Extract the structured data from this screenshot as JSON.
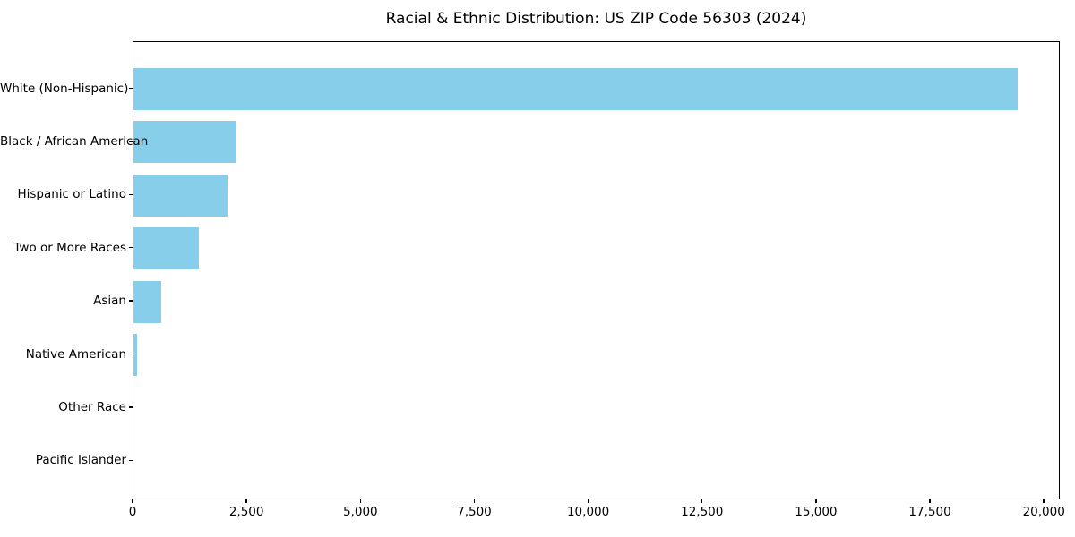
{
  "chart_data": {
    "type": "bar",
    "orientation": "horizontal",
    "title": "Racial & Ethnic Distribution: US ZIP Code 56303 (2024)",
    "categories": [
      "White (Non-Hispanic)",
      "Black / African American",
      "Hispanic or Latino",
      "Two or More Races",
      "Asian",
      "Native American",
      "Other Race",
      "Pacific Islander"
    ],
    "values": [
      19400,
      2270,
      2070,
      1440,
      605,
      75,
      0,
      0
    ],
    "xlabel": "",
    "ylabel": "",
    "xlim": [
      0,
      20350
    ],
    "x_ticks": [
      0,
      2500,
      5000,
      7500,
      10000,
      12500,
      15000,
      17500,
      20000
    ],
    "x_tick_labels": [
      "0",
      "2,500",
      "5,000",
      "7,500",
      "10,000",
      "12,500",
      "15,000",
      "17,500",
      "20,000"
    ],
    "bar_color": "#87CEEB",
    "text_color": "#000000",
    "grid": false,
    "legend": "none"
  }
}
